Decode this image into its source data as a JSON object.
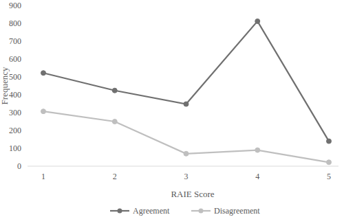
{
  "chart_data": {
    "type": "line",
    "x_label": "RAIE Score",
    "y_label": "Frequency",
    "categories": [
      "1",
      "2",
      "3",
      "4",
      "5"
    ],
    "series": [
      {
        "name": "Agreement",
        "color": "#707070",
        "marker": "circle",
        "values": [
          522,
          424,
          348,
          812,
          140
        ]
      },
      {
        "name": "Disagreement",
        "color": "#bfbfbf",
        "marker": "circle",
        "values": [
          307,
          250,
          70,
          90,
          22
        ]
      }
    ],
    "ylim": [
      0,
      900
    ],
    "yticks": [
      0,
      100,
      200,
      300,
      400,
      500,
      600,
      700,
      800,
      900
    ],
    "grid": false,
    "legend": "bottom"
  }
}
